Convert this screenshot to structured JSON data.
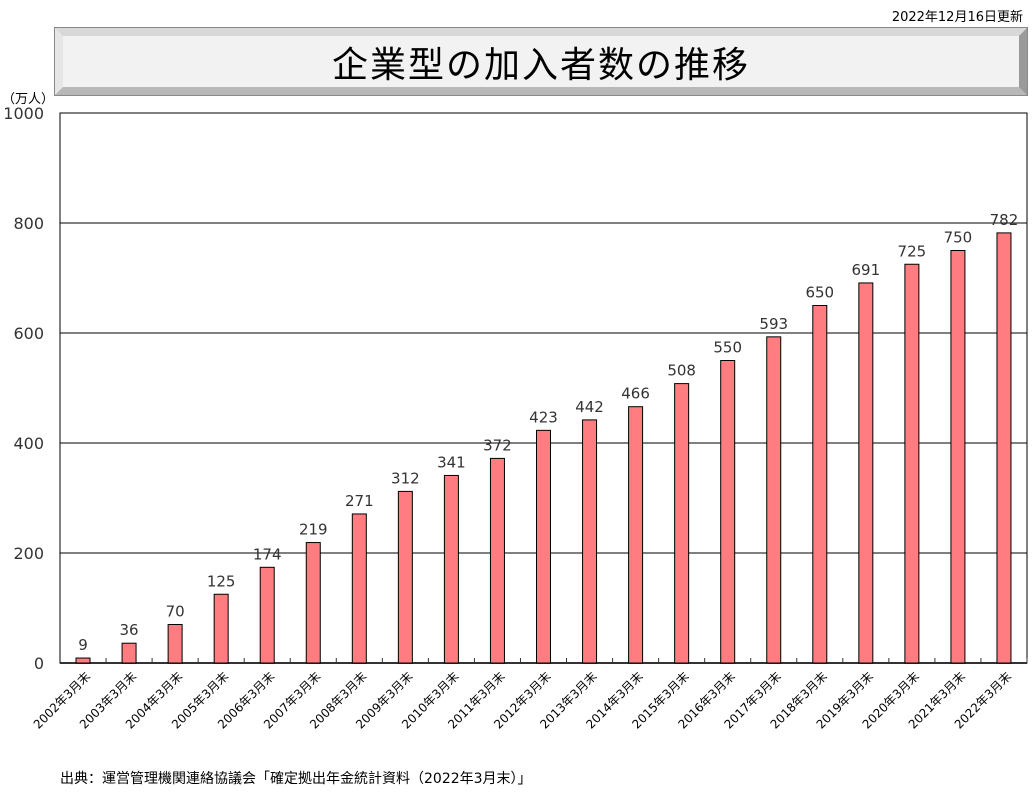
{
  "updated": "2022年12月16日更新",
  "title": "企業型の加入者数の推移",
  "unit": "（万人）",
  "source": "出典：運営管理機関連絡協議会「確定拠出年金統計資料（2022年3月末）」",
  "chart_data": {
    "type": "bar",
    "title": "企業型の加入者数の推移",
    "ylabel": "（万人）",
    "ylim": [
      0,
      1000
    ],
    "yticks": [
      0,
      200,
      400,
      600,
      800,
      1000
    ],
    "grid": true,
    "bar_color": "#ff7c80",
    "categories": [
      "2002年3月末",
      "2003年3月末",
      "2004年3月末",
      "2005年3月末",
      "2006年3月末",
      "2007年3月末",
      "2008年3月末",
      "2009年3月末",
      "2010年3月末",
      "2011年3月末",
      "2012年3月末",
      "2013年3月末",
      "2014年3月末",
      "2015年3月末",
      "2016年3月末",
      "2017年3月末",
      "2018年3月末",
      "2019年3月末",
      "2020年3月末",
      "2021年3月末",
      "2022年3月末"
    ],
    "values": [
      9,
      36,
      70,
      125,
      174,
      219,
      271,
      312,
      341,
      372,
      423,
      442,
      466,
      508,
      550,
      593,
      650,
      691,
      725,
      750,
      782
    ]
  }
}
